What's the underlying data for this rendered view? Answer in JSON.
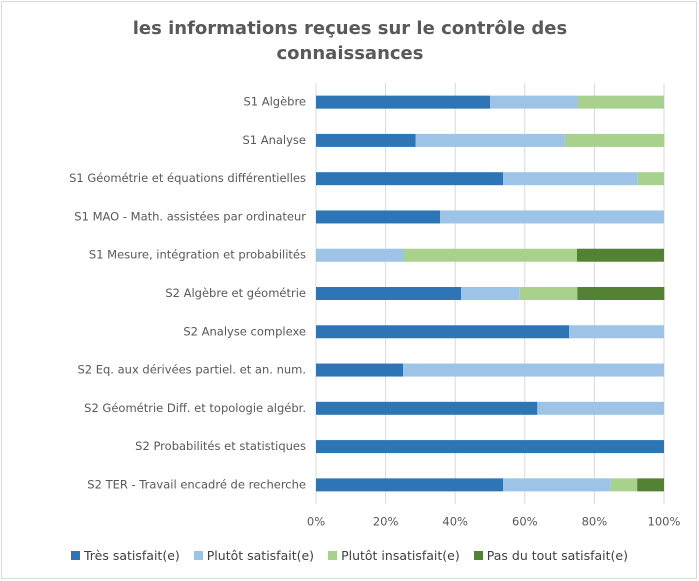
{
  "chart_data": {
    "type": "stacked-bar-horizontal",
    "title": "les informations reçues sur le contrôle des connaissances",
    "categories": [
      "S1 Algèbre",
      "S1 Analyse",
      "S1 Géométrie et équations différentielles",
      "S1 MAO - Math. assistées par ordinateur",
      "S1 Mesure, intégration et probabilités",
      "S2 Algèbre et géométrie",
      "S2 Analyse complexe",
      "S2 Eq. aux dérivées partiel. et an. num.",
      "S2 Géométrie Diff. et topologie algébr.",
      "S2 Probabilités et statistiques",
      "S2 TER - Travail encadré de recherche"
    ],
    "series": [
      {
        "name": "Très satisfait(e)",
        "color": "#2e75b6",
        "values": [
          50,
          28.6,
          53.8,
          35.7,
          0,
          41.7,
          72.7,
          25,
          63.6,
          100,
          53.8
        ]
      },
      {
        "name": "Plutôt satisfait(e)",
        "color": "#9dc3e6",
        "values": [
          25,
          42.9,
          38.5,
          64.3,
          25,
          16.7,
          27.3,
          75,
          36.4,
          0,
          30.8
        ]
      },
      {
        "name": "Plutôt insatisfait(e)",
        "color": "#a9d18e",
        "values": [
          25,
          28.6,
          7.7,
          0,
          50,
          16.7,
          0,
          0,
          0,
          0,
          7.7
        ]
      },
      {
        "name": "Pas du tout satisfait(e)",
        "color": "#548235",
        "values": [
          0,
          0,
          0,
          0,
          25,
          25,
          0,
          0,
          0,
          0,
          7.7
        ]
      }
    ],
    "xlim": [
      0,
      100
    ],
    "xticks": [
      {
        "value": 0,
        "label": "0%"
      },
      {
        "value": 20,
        "label": "20%"
      },
      {
        "value": 40,
        "label": "40%"
      },
      {
        "value": 60,
        "label": "60%"
      },
      {
        "value": 80,
        "label": "80%"
      },
      {
        "value": 100,
        "label": "100%"
      }
    ],
    "grid": true,
    "legend": "bottom"
  }
}
